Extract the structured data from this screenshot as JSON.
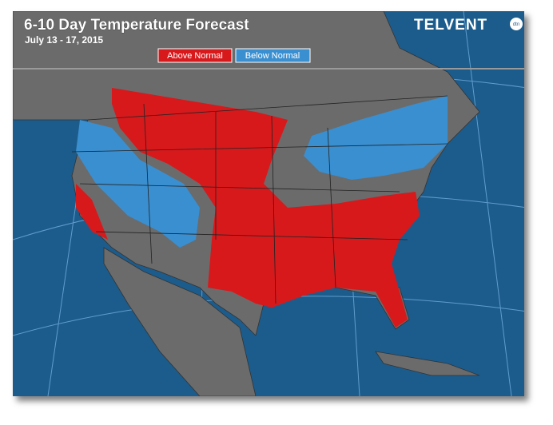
{
  "header": {
    "title": "6-10 Day Temperature Forecast",
    "date_range": "July 13 - 17, 2015",
    "logo": "TELVENT",
    "logo_badge": "dtn"
  },
  "legend": [
    {
      "label": "Above Normal",
      "color": "#d7191c"
    },
    {
      "label": "Below Normal",
      "color": "#3a8fd0"
    }
  ]
}
